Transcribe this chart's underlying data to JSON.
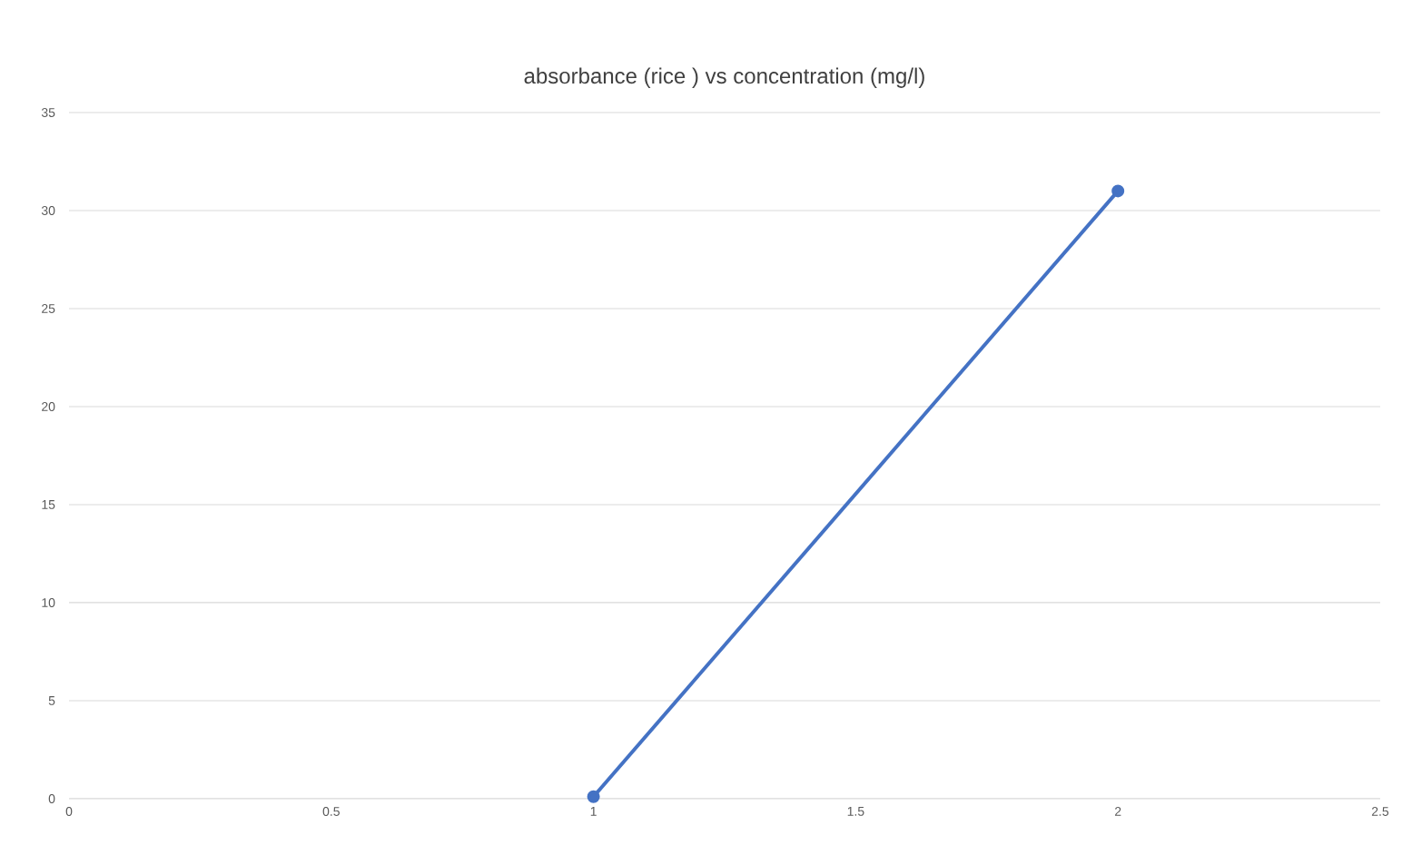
{
  "chart_data": {
    "type": "line",
    "title": "absorbance (rice ) vs concentration (mg/l)",
    "series": [
      {
        "color": "#4472c4",
        "x": [
          1,
          2
        ],
        "values": [
          0.1,
          31
        ]
      }
    ],
    "marker": "circle",
    "line_style": "solid",
    "grid": "y",
    "xlim": [
      0,
      2.5
    ],
    "xticks": [
      0,
      0.5,
      1,
      1.5,
      2,
      2.5
    ],
    "ylim": [
      0,
      35
    ],
    "yticks": [
      0,
      5,
      10,
      15,
      20,
      25,
      30,
      35
    ]
  }
}
